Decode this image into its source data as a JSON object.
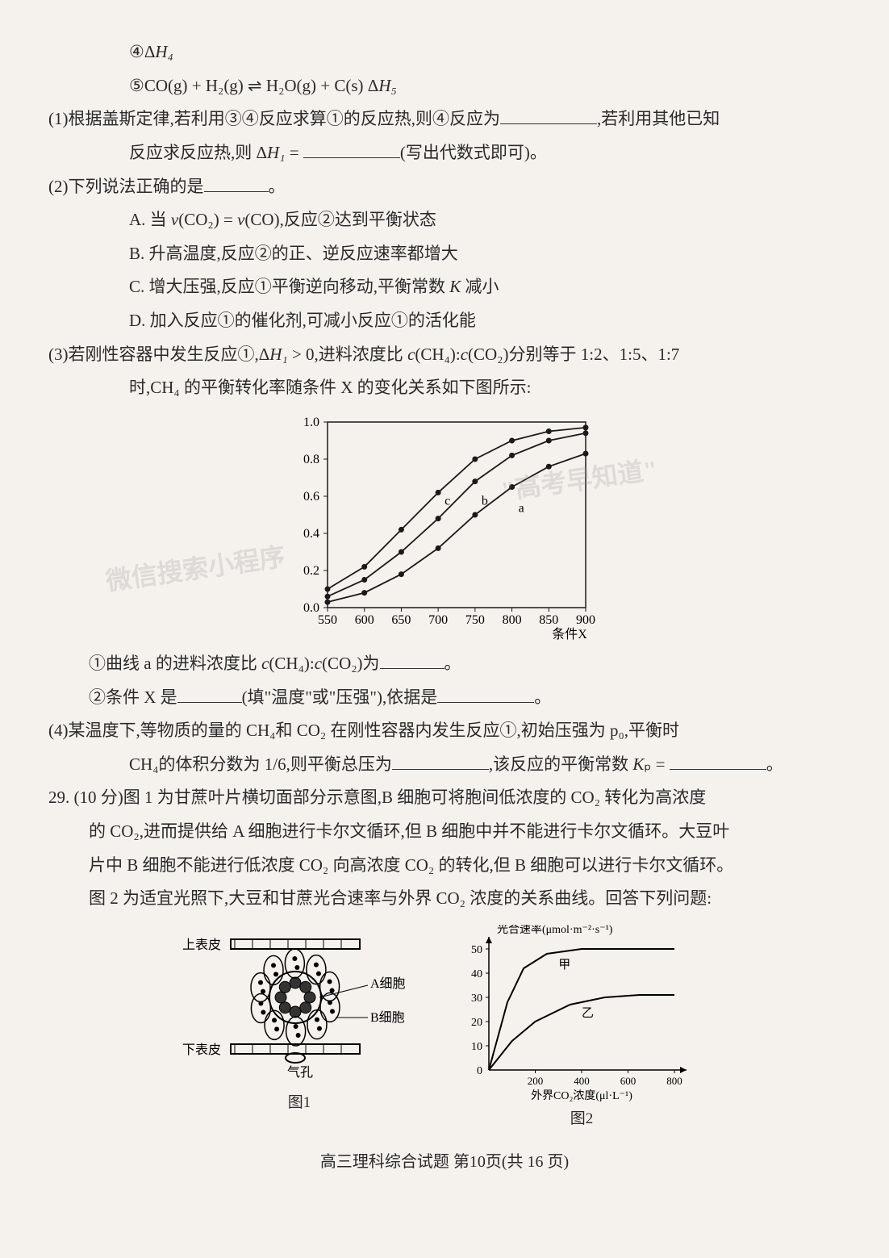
{
  "top": {
    "item4": "④Δ",
    "item4_var": "H₄",
    "item5": "⑤CO(g) + H₂(g) ⇌ H₂O(g) + C(s)    Δ",
    "item5_var": "H₅"
  },
  "q1": {
    "text_a": "(1)根据盖斯定律,若利用③④反应求算①的反应热,则④反应为",
    "text_b": ",若利用其他已知",
    "text_c": "反应求反应热,则 Δ",
    "text_c_var": "H₁",
    "text_d": " = ",
    "text_e": "(写出代数式即可)。"
  },
  "q2": {
    "stem": "(2)下列说法正确的是",
    "end": "。",
    "optA_a": "A. 当 ",
    "optA_b": "v",
    "optA_c": "(CO₂) = ",
    "optA_d": "v",
    "optA_e": "(CO),反应②达到平衡状态",
    "optB": "B. 升高温度,反应②的正、逆反应速率都增大",
    "optC_a": "C. 增大压强,反应①平衡逆向移动,平衡常数 ",
    "optC_b": "K",
    "optC_c": " 减小",
    "optD": "D. 加入反应①的催化剂,可减小反应①的活化能"
  },
  "q3": {
    "stem_a": "(3)若刚性容器中发生反应①,Δ",
    "stem_var": "H₁",
    "stem_b": " > 0,进料浓度比 ",
    "stem_c": "c",
    "stem_d": "(CH₄):",
    "stem_e": "c",
    "stem_f": "(CO₂)分别等于 1:2、1:5、1:7",
    "stem2": "时,CH₄ 的平衡转化率随条件 X 的变化关系如下图所示:",
    "sub1_a": "①曲线 a 的进料浓度比 ",
    "sub1_b": "c",
    "sub1_c": "(CH₄):",
    "sub1_d": "c",
    "sub1_e": "(CO₂)为",
    "sub1_end": "。",
    "sub2_a": "②条件 X 是",
    "sub2_b": "(填\"温度\"或\"压强\"),依据是",
    "sub2_end": "。"
  },
  "q4": {
    "line1": "(4)某温度下,等物质的量的 CH₄和 CO₂ 在刚性容器内发生反应①,初始压强为 p₀,平衡时",
    "line2_a": "CH₄的体积分数为 1/6,则平衡总压为",
    "line2_b": ",该反应的平衡常数 ",
    "line2_c": "K",
    "line2_d": "ₚ = ",
    "line2_end": "。"
  },
  "q29": {
    "line1": "29. (10 分)图 1 为甘蔗叶片横切面部分示意图,B 细胞可将胞间低浓度的 CO₂ 转化为高浓度",
    "line2": "的 CO₂,进而提供给 A 细胞进行卡尔文循环,但 B 细胞中并不能进行卡尔文循环。大豆叶",
    "line3": "片中 B 细胞不能进行低浓度 CO₂ 向高浓度 CO₂ 的转化,但 B 细胞可以进行卡尔文循环。",
    "line4": "图 2 为适宜光照下,大豆和甘蔗光合速率与外界 CO₂ 浓度的关系曲线。回答下列问题:"
  },
  "chart": {
    "ylim": [
      0.0,
      1.0
    ],
    "xlim": [
      550,
      900
    ],
    "yticks": [
      0.0,
      0.2,
      0.4,
      0.6,
      0.8,
      1.0
    ],
    "xticks": [
      550,
      600,
      650,
      700,
      750,
      800,
      850,
      900
    ],
    "xlabel": "条件X",
    "line_color": "#1a1a1a",
    "marker_color": "#1a1a1a",
    "background": "#f5f2ed",
    "series": {
      "c": {
        "label": "c",
        "data": [
          [
            550,
            0.1
          ],
          [
            600,
            0.22
          ],
          [
            650,
            0.42
          ],
          [
            700,
            0.62
          ],
          [
            750,
            0.8
          ],
          [
            800,
            0.9
          ],
          [
            850,
            0.95
          ],
          [
            900,
            0.97
          ]
        ]
      },
      "b": {
        "label": "b",
        "data": [
          [
            550,
            0.06
          ],
          [
            600,
            0.15
          ],
          [
            650,
            0.3
          ],
          [
            700,
            0.48
          ],
          [
            750,
            0.68
          ],
          [
            800,
            0.82
          ],
          [
            850,
            0.9
          ],
          [
            900,
            0.94
          ]
        ]
      },
      "a": {
        "label": "a",
        "data": [
          [
            550,
            0.03
          ],
          [
            600,
            0.08
          ],
          [
            650,
            0.18
          ],
          [
            700,
            0.32
          ],
          [
            750,
            0.5
          ],
          [
            800,
            0.65
          ],
          [
            850,
            0.76
          ],
          [
            900,
            0.83
          ]
        ]
      }
    }
  },
  "fig1": {
    "upper": "上表皮",
    "lower": "下表皮",
    "a_cell": "A细胞",
    "b_cell": "B细胞",
    "stoma": "气孔",
    "caption": "图1"
  },
  "fig2": {
    "ylabel": "光合速率(μmol·m⁻²·s⁻¹)",
    "xlabel": "外界CO₂浓度(μl·L⁻¹)",
    "xticks": [
      0,
      200,
      400,
      600,
      800
    ],
    "yticks": [
      10,
      20,
      30,
      40,
      50
    ],
    "series": {
      "jia": {
        "label": "甲",
        "data": [
          [
            0,
            0
          ],
          [
            80,
            28
          ],
          [
            150,
            42
          ],
          [
            250,
            48
          ],
          [
            400,
            50
          ],
          [
            600,
            50
          ],
          [
            800,
            50
          ]
        ]
      },
      "yi": {
        "label": "乙",
        "data": [
          [
            0,
            0
          ],
          [
            100,
            12
          ],
          [
            200,
            20
          ],
          [
            350,
            27
          ],
          [
            500,
            30
          ],
          [
            650,
            31
          ],
          [
            800,
            31
          ]
        ]
      }
    },
    "caption": "图2"
  },
  "footer": "高三理科综合试题  第10页(共 16 页)",
  "watermarks": {
    "wm1": "\"高考早知道\"",
    "wm2": "微信搜索小程序"
  }
}
